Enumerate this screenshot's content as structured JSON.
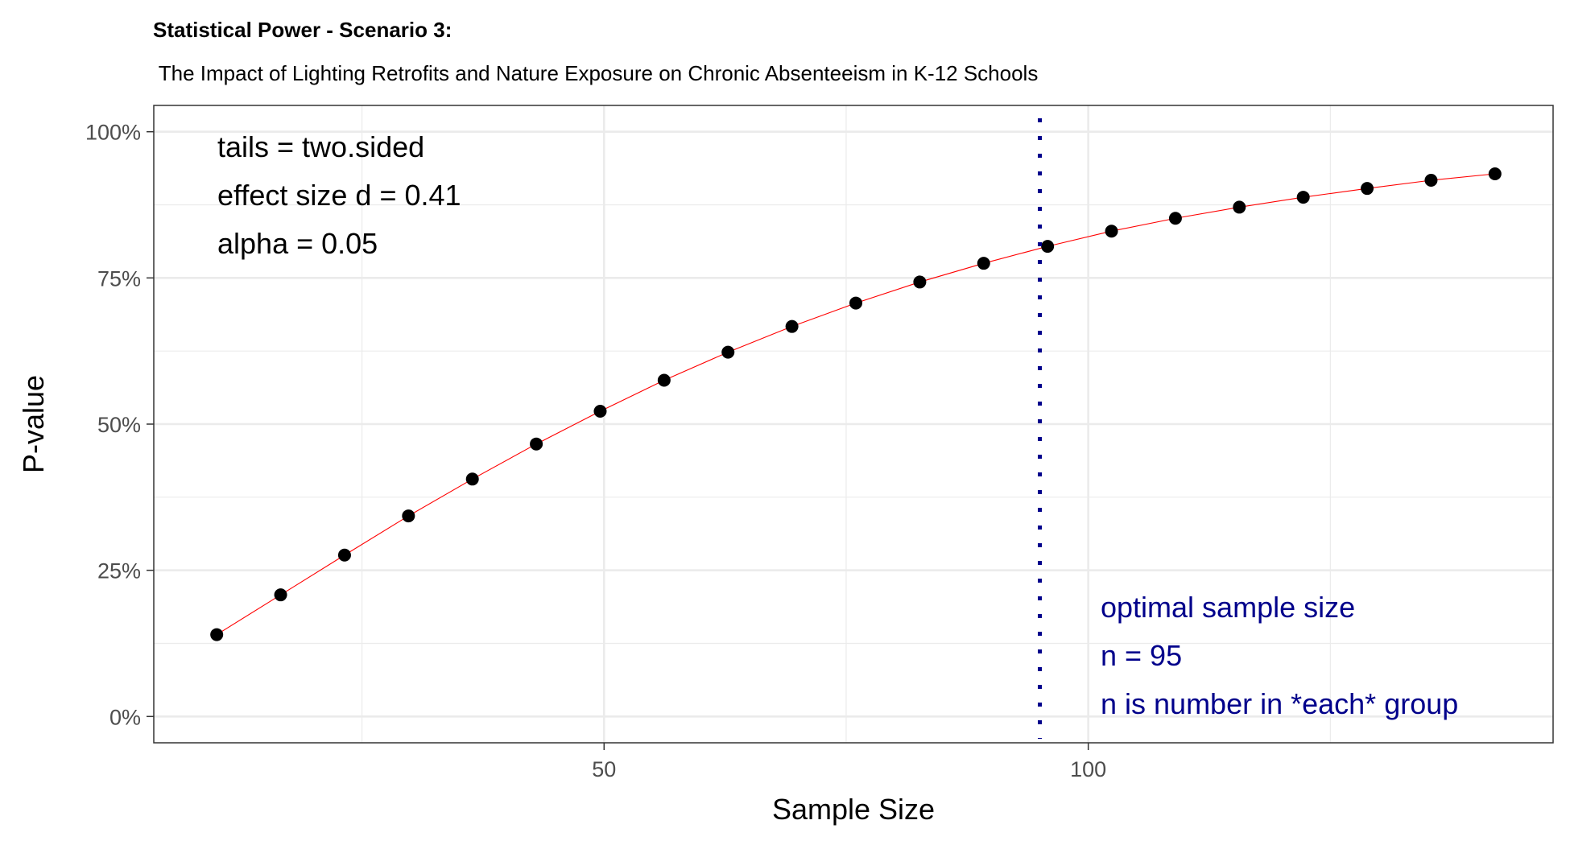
{
  "chart_data": {
    "type": "line",
    "title": "Statistical Power - Scenario 3:",
    "subtitle": " The Impact of Lighting Retrofits and Nature Exposure on Chronic Absenteeism in K-12 Schools",
    "xlabel": "Sample Size",
    "ylabel": "P-value",
    "xlim": [
      3.5,
      148
    ],
    "ylim": [
      -0.045,
      1.045
    ],
    "x_ticks": [
      {
        "value": 50,
        "label": "50"
      },
      {
        "value": 100,
        "label": "100"
      }
    ],
    "y_ticks": [
      {
        "value": 0,
        "label": "0%"
      },
      {
        "value": 0.25,
        "label": "25%"
      },
      {
        "value": 0.5,
        "label": "50%"
      },
      {
        "value": 0.75,
        "label": "75%"
      },
      {
        "value": 1.0,
        "label": "100%"
      }
    ],
    "x_minor_ticks": [
      25,
      75,
      125
    ],
    "y_minor_ticks": [
      0.125,
      0.375,
      0.625,
      0.875
    ],
    "grid": true,
    "series": [
      {
        "color": "#ff0000",
        "x": [
          10,
          16.6,
          23.2,
          29.8,
          36.4,
          43,
          49.6,
          56.2,
          62.8,
          69.4,
          76,
          82.6,
          89.2,
          95.8,
          102.4,
          109,
          115.6,
          122.2,
          128.8,
          135.4,
          142
        ],
        "y": [
          0.14,
          0.208,
          0.276,
          0.343,
          0.406,
          0.466,
          0.522,
          0.575,
          0.623,
          0.667,
          0.707,
          0.743,
          0.775,
          0.804,
          0.83,
          0.852,
          0.871,
          0.888,
          0.903,
          0.917,
          0.928
        ]
      }
    ],
    "vline": {
      "x": 95,
      "color": "#00008b",
      "style": "dotted"
    },
    "annotations": {
      "params": [
        "tails = two.sided",
        "effect size d = 0.41",
        "alpha = 0.05"
      ],
      "optimal": [
        "optimal sample size",
        "n = 95",
        "n is number in *each* group"
      ],
      "optimal_color": "#00008b"
    }
  }
}
